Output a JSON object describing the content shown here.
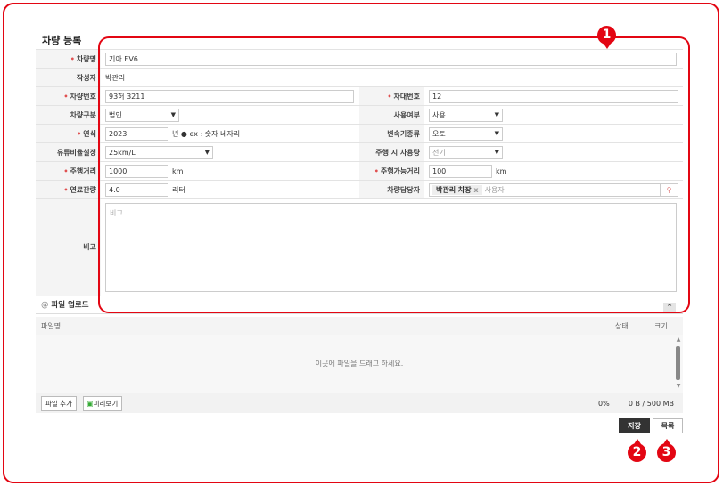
{
  "title": "차량 등록",
  "fields": {
    "name": {
      "label": "차량명",
      "value": "기아 EV6"
    },
    "writer": {
      "label": "작성자",
      "value": "박관리"
    },
    "number": {
      "label": "차량번호",
      "value": "93허 3211"
    },
    "fleet_no": {
      "label": "차대번호",
      "value": "12"
    },
    "type": {
      "label": "차량구분",
      "value": "법인"
    },
    "use": {
      "label": "사용여부",
      "value": "사용"
    },
    "year": {
      "label": "연식",
      "value": "2023",
      "unit": "년",
      "hint": "ex : 숫자 네자리"
    },
    "transmission": {
      "label": "변속기종류",
      "value": "오토"
    },
    "fuel_ratio": {
      "label": "유류비율설정",
      "value": "25km/L"
    },
    "fuel_type": {
      "label": "주행 시 사용량",
      "value": "전기"
    },
    "mileage": {
      "label": "주행거리",
      "value": "1000",
      "unit": "km"
    },
    "range": {
      "label": "주행가능거리",
      "value": "100",
      "unit": "km"
    },
    "fuel_left": {
      "label": "연료잔량",
      "value": "4.0",
      "unit": "리터"
    },
    "manager": {
      "label": "차량담당자",
      "tag": "박관리 차장",
      "tag_remove": "x",
      "placeholder": "사용자"
    },
    "note": {
      "label": "비고",
      "placeholder": "비고"
    }
  },
  "upload": {
    "title": "파일 업로드",
    "col_name": "파일명",
    "col_status": "상태",
    "col_size": "크기",
    "drop_text": "이곳에 파일을 드래그 하세요.",
    "add_label": "파일 추가",
    "preview_label": "미리보기",
    "percent": "0%",
    "size": "0 B / 500 MB"
  },
  "actions": {
    "save": "저장",
    "list": "목록"
  },
  "badges": [
    "1",
    "2",
    "3"
  ],
  "colors": {
    "annotation": "#e30613",
    "save_bg": "#333333"
  }
}
